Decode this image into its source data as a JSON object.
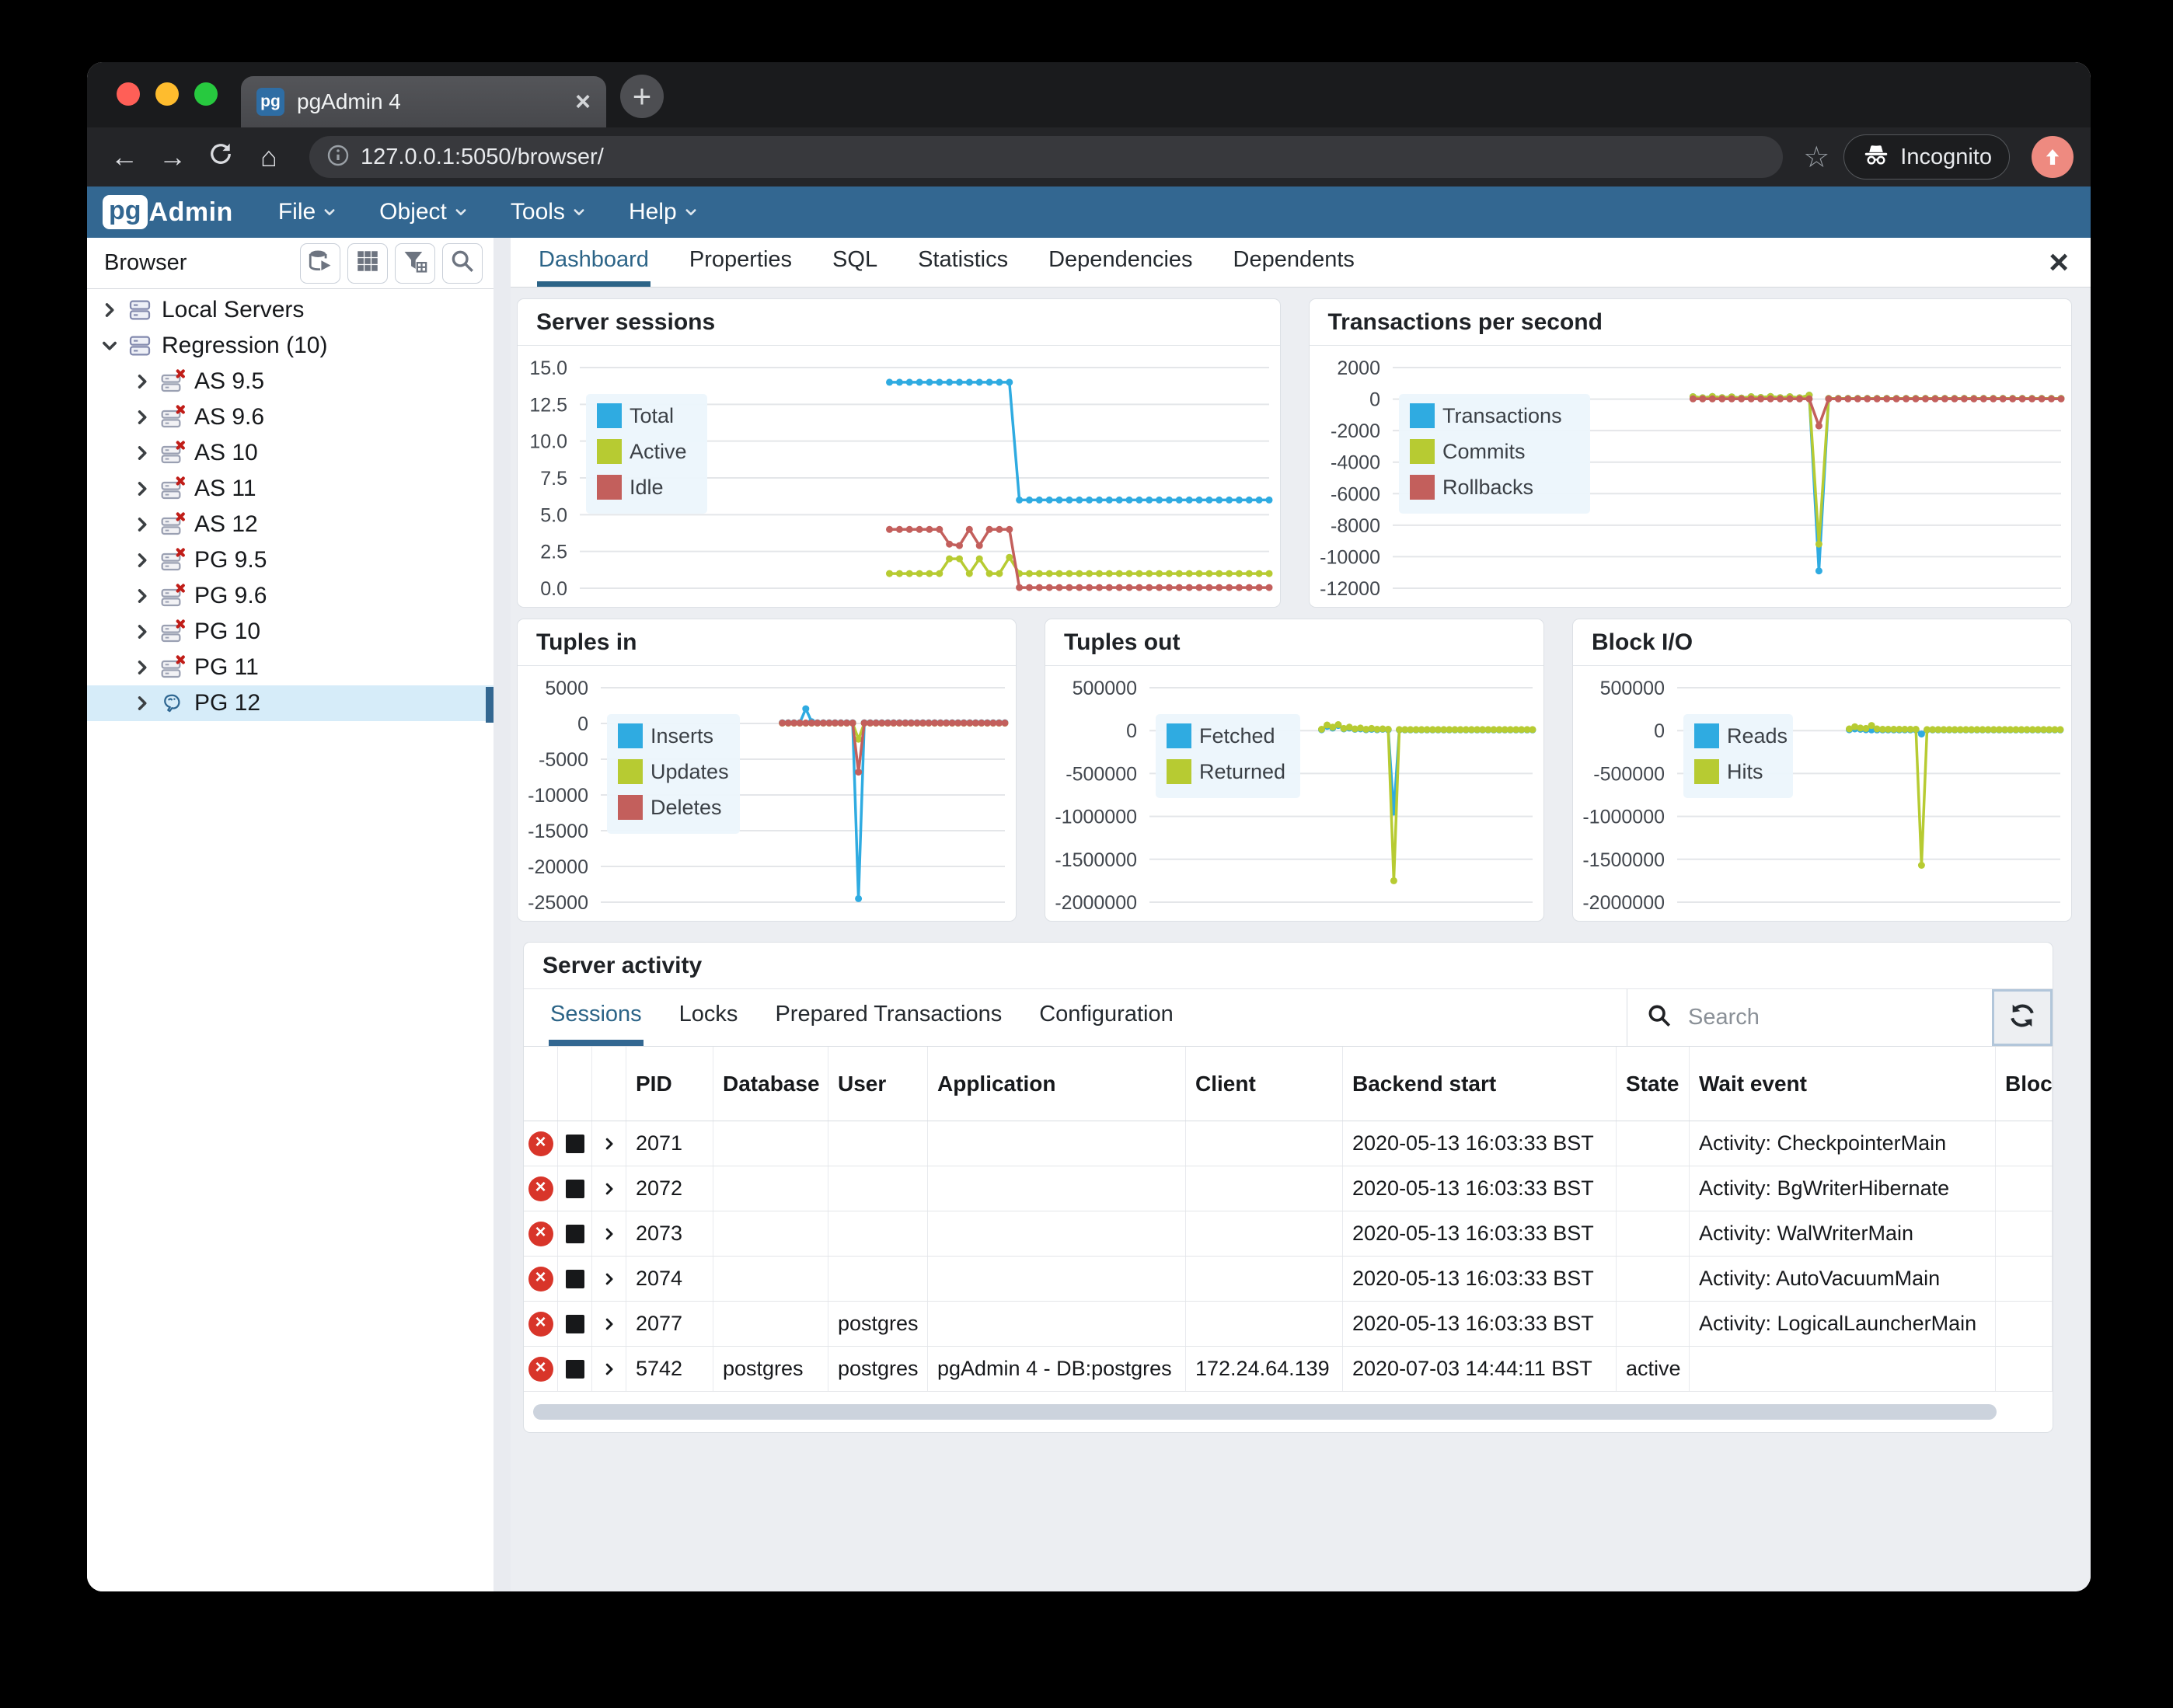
{
  "glyphs": {
    "plus": "+",
    "close": "×",
    "back": "←",
    "forward": "→",
    "home": "⌂",
    "star": "☆"
  },
  "browser_chrome": {
    "tab_title": "pgAdmin 4",
    "tab_favicon_text": "pg",
    "url": "127.0.0.1:5050/browser/",
    "incognito_label": "Incognito"
  },
  "app_header": {
    "logo_pg": "pg",
    "logo_admin": "Admin",
    "menus": [
      {
        "label": "File"
      },
      {
        "label": "Object"
      },
      {
        "label": "Tools"
      },
      {
        "label": "Help"
      }
    ]
  },
  "sidebar": {
    "title": "Browser",
    "toolbar_icons": [
      "db-quick-search-icon",
      "grid-icon",
      "filter-icon",
      "search-icon"
    ],
    "tree": [
      {
        "label": "Local Servers",
        "icon": "server-group",
        "chevron": "right",
        "indent": 0,
        "selected": false
      },
      {
        "label": "Regression (10)",
        "icon": "server-group",
        "chevron": "down",
        "indent": 0,
        "selected": false
      },
      {
        "label": "AS 9.5",
        "icon": "server-disconnected",
        "chevron": "right",
        "indent": 1,
        "selected": false
      },
      {
        "label": "AS 9.6",
        "icon": "server-disconnected",
        "chevron": "right",
        "indent": 1,
        "selected": false
      },
      {
        "label": "AS 10",
        "icon": "server-disconnected",
        "chevron": "right",
        "indent": 1,
        "selected": false
      },
      {
        "label": "AS 11",
        "icon": "server-disconnected",
        "chevron": "right",
        "indent": 1,
        "selected": false
      },
      {
        "label": "AS 12",
        "icon": "server-disconnected",
        "chevron": "right",
        "indent": 1,
        "selected": false
      },
      {
        "label": "PG 9.5",
        "icon": "server-disconnected",
        "chevron": "right",
        "indent": 1,
        "selected": false
      },
      {
        "label": "PG 9.6",
        "icon": "server-disconnected",
        "chevron": "right",
        "indent": 1,
        "selected": false
      },
      {
        "label": "PG 10",
        "icon": "server-disconnected",
        "chevron": "right",
        "indent": 1,
        "selected": false
      },
      {
        "label": "PG 11",
        "icon": "server-disconnected",
        "chevron": "right",
        "indent": 1,
        "selected": false
      },
      {
        "label": "PG 12",
        "icon": "postgres",
        "chevron": "right",
        "indent": 1,
        "selected": true
      }
    ]
  },
  "main_tabs": {
    "tabs": [
      {
        "label": "Dashboard",
        "active": true
      },
      {
        "label": "Properties",
        "active": false
      },
      {
        "label": "SQL",
        "active": false
      },
      {
        "label": "Statistics",
        "active": false
      },
      {
        "label": "Dependencies",
        "active": false
      },
      {
        "label": "Dependents",
        "active": false
      }
    ]
  },
  "server_activity": {
    "title": "Server activity",
    "tabs": [
      {
        "label": "Sessions",
        "active": true
      },
      {
        "label": "Locks",
        "active": false
      },
      {
        "label": "Prepared Transactions",
        "active": false
      },
      {
        "label": "Configuration",
        "active": false
      }
    ],
    "search_placeholder": "Search",
    "table": {
      "columns": [
        "",
        "",
        "",
        "PID",
        "Database",
        "User",
        "Application",
        "Client",
        "Backend start",
        "State",
        "Wait event",
        "Blocking PIDs"
      ],
      "rows": [
        {
          "pid": "2071",
          "database": "",
          "user": "",
          "application": "",
          "client": "",
          "backend_start": "2020-05-13 16:03:33 BST",
          "state": "",
          "wait_event": "Activity: CheckpointerMain",
          "blocking_pids": ""
        },
        {
          "pid": "2072",
          "database": "",
          "user": "",
          "application": "",
          "client": "",
          "backend_start": "2020-05-13 16:03:33 BST",
          "state": "",
          "wait_event": "Activity: BgWriterHibernate",
          "blocking_pids": ""
        },
        {
          "pid": "2073",
          "database": "",
          "user": "",
          "application": "",
          "client": "",
          "backend_start": "2020-05-13 16:03:33 BST",
          "state": "",
          "wait_event": "Activity: WalWriterMain",
          "blocking_pids": ""
        },
        {
          "pid": "2074",
          "database": "",
          "user": "",
          "application": "",
          "client": "",
          "backend_start": "2020-05-13 16:03:33 BST",
          "state": "",
          "wait_event": "Activity: AutoVacuumMain",
          "blocking_pids": ""
        },
        {
          "pid": "2077",
          "database": "",
          "user": "postgres",
          "application": "",
          "client": "",
          "backend_start": "2020-05-13 16:03:33 BST",
          "state": "",
          "wait_event": "Activity: LogicalLauncherMain",
          "blocking_pids": ""
        },
        {
          "pid": "5742",
          "database": "postgres",
          "user": "postgres",
          "application": "pgAdmin 4 - DB:postgres",
          "client": "172.24.64.139",
          "backend_start": "2020-07-03 14:44:11 BST",
          "state": "active",
          "wait_event": "",
          "blocking_pids": ""
        }
      ]
    }
  },
  "chart_data": [
    {
      "type": "line",
      "title": "Server sessions",
      "grid": true,
      "legend_position": "top-left",
      "x_points": 70,
      "start_index": 31,
      "ylim": [
        0,
        15
      ],
      "yticks": [
        {
          "label": "15.0",
          "value": 15
        },
        {
          "label": "12.5",
          "value": 12.5
        },
        {
          "label": "10.0",
          "value": 10
        },
        {
          "label": "7.5",
          "value": 7.5
        },
        {
          "label": "5.0",
          "value": 5
        },
        {
          "label": "2.5",
          "value": 2.5
        },
        {
          "label": "0.0",
          "value": 0
        }
      ],
      "series": [
        {
          "name": "Total",
          "color": "#2fabe1",
          "values": [
            14,
            14,
            14,
            14,
            14,
            14,
            14,
            14,
            14,
            14,
            14,
            14,
            14,
            6,
            6,
            6,
            6,
            6,
            6,
            6,
            6,
            6,
            6,
            6,
            6,
            6,
            6,
            6,
            6,
            6,
            6,
            6,
            6,
            6,
            6,
            6,
            6,
            6,
            6
          ]
        },
        {
          "name": "Active",
          "color": "#b7cb32",
          "values": [
            1,
            1,
            1,
            1,
            1,
            1,
            2,
            2,
            1,
            2,
            1,
            1,
            2.1,
            1,
            1,
            1,
            1,
            1,
            1,
            1,
            1,
            1,
            1,
            1,
            1,
            1,
            1,
            1,
            1,
            1,
            1,
            1,
            1,
            1,
            1,
            1,
            1,
            1,
            1
          ]
        },
        {
          "name": "Idle",
          "color": "#c35f5c",
          "values": [
            4,
            4,
            4,
            4,
            4,
            4,
            3,
            2.9,
            4,
            2.9,
            4,
            4,
            4,
            0.05,
            0.05,
            0.05,
            0.05,
            0.05,
            0.05,
            0.05,
            0.05,
            0.05,
            0.05,
            0.05,
            0.05,
            0.05,
            0.05,
            0.05,
            0.05,
            0.05,
            0.05,
            0.05,
            0.05,
            0.05,
            0.05,
            0.05,
            0.05,
            0.05,
            0.05
          ]
        }
      ]
    },
    {
      "type": "line",
      "title": "Transactions per second",
      "grid": true,
      "legend_position": "top-left",
      "x_points": 70,
      "start_index": 31,
      "ylim": [
        -12000,
        2000
      ],
      "yticks": [
        {
          "label": "2000",
          "value": 2000
        },
        {
          "label": "0",
          "value": 0
        },
        {
          "label": "-2000",
          "value": -2000
        },
        {
          "label": "-4000",
          "value": -4000
        },
        {
          "label": "-6000",
          "value": -6000
        },
        {
          "label": "-8000",
          "value": -8000
        },
        {
          "label": "-10000",
          "value": -10000
        },
        {
          "label": "-12000",
          "value": -12000
        }
      ],
      "series": [
        {
          "name": "Transactions",
          "color": "#2fabe1",
          "values": [
            150,
            80,
            160,
            90,
            140,
            70,
            150,
            100,
            160,
            90,
            150,
            80,
            250,
            -10900,
            40,
            40,
            40,
            40,
            40,
            40,
            40,
            40,
            40,
            40,
            40,
            40,
            40,
            40,
            40,
            40,
            40,
            40,
            40,
            40,
            40,
            40,
            40,
            40,
            40
          ]
        },
        {
          "name": "Commits",
          "color": "#b7cb32",
          "values": [
            150,
            80,
            160,
            90,
            140,
            70,
            150,
            100,
            160,
            90,
            150,
            80,
            250,
            -9200,
            40,
            40,
            40,
            40,
            40,
            40,
            40,
            40,
            40,
            40,
            40,
            40,
            40,
            40,
            40,
            40,
            40,
            40,
            40,
            40,
            40,
            40,
            40,
            40,
            40
          ]
        },
        {
          "name": "Rollbacks",
          "color": "#c35f5c",
          "values": [
            15,
            15,
            15,
            15,
            15,
            15,
            15,
            15,
            15,
            15,
            15,
            15,
            15,
            -1700,
            15,
            15,
            15,
            15,
            15,
            15,
            15,
            15,
            15,
            15,
            15,
            15,
            15,
            15,
            15,
            15,
            15,
            15,
            15,
            15,
            15,
            15,
            15,
            15,
            15
          ]
        }
      ]
    },
    {
      "type": "line",
      "title": "Tuples in",
      "grid": true,
      "legend_position": "top-left",
      "x_points": 70,
      "start_index": 31,
      "ylim": [
        -25000,
        5000
      ],
      "yticks": [
        {
          "label": "5000",
          "value": 5000
        },
        {
          "label": "0",
          "value": 0
        },
        {
          "label": "-5000",
          "value": -5000
        },
        {
          "label": "-10000",
          "value": -10000
        },
        {
          "label": "-15000",
          "value": -15000
        },
        {
          "label": "-20000",
          "value": -20000
        },
        {
          "label": "-25000",
          "value": -25000
        }
      ],
      "series": [
        {
          "name": "Inserts",
          "color": "#2fabe1",
          "values": [
            100,
            100,
            100,
            100,
            2050,
            250,
            100,
            100,
            100,
            100,
            100,
            100,
            100,
            -24500,
            100,
            100,
            100,
            100,
            100,
            100,
            100,
            100,
            100,
            100,
            100,
            100,
            100,
            100,
            100,
            100,
            100,
            100,
            100,
            100,
            100,
            100,
            100,
            100,
            100
          ]
        },
        {
          "name": "Updates",
          "color": "#b7cb32",
          "values": [
            40,
            40,
            40,
            40,
            40,
            40,
            40,
            40,
            40,
            40,
            40,
            40,
            40,
            -2200,
            40,
            40,
            40,
            40,
            40,
            40,
            40,
            40,
            40,
            40,
            40,
            40,
            40,
            40,
            40,
            40,
            40,
            40,
            40,
            40,
            40,
            40,
            40,
            40,
            40
          ]
        },
        {
          "name": "Deletes",
          "color": "#c35f5c",
          "values": [
            60,
            60,
            60,
            60,
            60,
            60,
            60,
            60,
            60,
            60,
            60,
            60,
            60,
            -6800,
            60,
            60,
            60,
            60,
            60,
            60,
            60,
            60,
            60,
            60,
            60,
            60,
            60,
            60,
            60,
            60,
            60,
            60,
            60,
            60,
            60,
            60,
            60,
            60,
            60
          ]
        }
      ]
    },
    {
      "type": "line",
      "title": "Tuples out",
      "grid": true,
      "legend_position": "top-left",
      "x_points": 70,
      "start_index": 31,
      "ylim": [
        -2000000,
        500000
      ],
      "yticks": [
        {
          "label": "500000",
          "value": 500000
        },
        {
          "label": "0",
          "value": 0
        },
        {
          "label": "-500000",
          "value": -500000
        },
        {
          "label": "-1000000",
          "value": -1000000
        },
        {
          "label": "-1500000",
          "value": -1500000
        },
        {
          "label": "-2000000",
          "value": -2000000
        }
      ],
      "series": [
        {
          "name": "Fetched",
          "color": "#2fabe1",
          "values": [
            10000,
            50000,
            30000,
            60000,
            20000,
            30000,
            15000,
            20000,
            10000,
            15000,
            10000,
            15000,
            10000,
            -950000,
            8000,
            8000,
            8000,
            8000,
            8000,
            8000,
            8000,
            8000,
            8000,
            8000,
            8000,
            8000,
            8000,
            8000,
            8000,
            8000,
            8000,
            8000,
            8000,
            8000,
            8000,
            8000,
            8000,
            8000,
            8000
          ]
        },
        {
          "name": "Returned",
          "color": "#b7cb32",
          "values": [
            15000,
            65000,
            40000,
            70000,
            25000,
            40000,
            20000,
            30000,
            15000,
            25000,
            15000,
            20000,
            15000,
            -1750000,
            12000,
            12000,
            12000,
            12000,
            12000,
            12000,
            12000,
            12000,
            12000,
            12000,
            12000,
            12000,
            12000,
            12000,
            12000,
            12000,
            12000,
            12000,
            12000,
            12000,
            12000,
            12000,
            12000,
            12000,
            12000
          ]
        }
      ]
    },
    {
      "type": "line",
      "title": "Block I/O",
      "grid": true,
      "legend_position": "top-left",
      "x_points": 70,
      "start_index": 31,
      "ylim": [
        -2000000,
        500000
      ],
      "yticks": [
        {
          "label": "500000",
          "value": 500000
        },
        {
          "label": "0",
          "value": 0
        },
        {
          "label": "-500000",
          "value": -500000
        },
        {
          "label": "-1000000",
          "value": -1000000
        },
        {
          "label": "-1500000",
          "value": -1500000
        },
        {
          "label": "-2000000",
          "value": -2000000
        }
      ],
      "series": [
        {
          "name": "Reads",
          "color": "#2fabe1",
          "values": [
            10000,
            20000,
            15000,
            10000,
            8000,
            8000,
            8000,
            8000,
            8000,
            8000,
            8000,
            8000,
            8000,
            -40000,
            8000,
            8000,
            8000,
            8000,
            8000,
            8000,
            8000,
            8000,
            8000,
            8000,
            8000,
            8000,
            8000,
            8000,
            8000,
            8000,
            8000,
            8000,
            8000,
            8000,
            8000,
            8000,
            8000,
            8000,
            8000
          ]
        },
        {
          "name": "Hits",
          "color": "#b7cb32",
          "values": [
            20000,
            45000,
            30000,
            25000,
            60000,
            20000,
            15000,
            15000,
            15000,
            15000,
            15000,
            15000,
            15000,
            -1570000,
            12000,
            12000,
            12000,
            12000,
            12000,
            12000,
            12000,
            12000,
            12000,
            12000,
            12000,
            12000,
            12000,
            12000,
            12000,
            12000,
            12000,
            12000,
            12000,
            12000,
            12000,
            12000,
            12000,
            12000,
            12000
          ]
        }
      ]
    }
  ]
}
